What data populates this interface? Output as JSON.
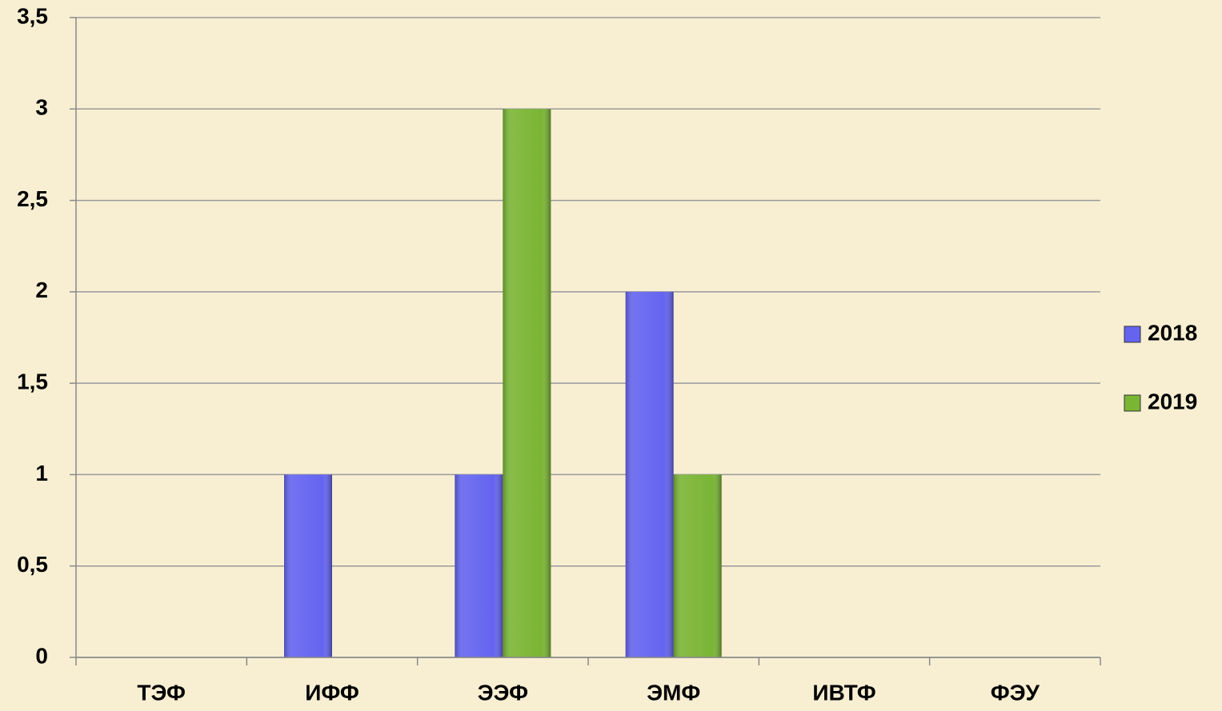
{
  "chart_data": {
    "type": "bar",
    "categories": [
      "ТЭФ",
      "ИФФ",
      "ЭЭФ",
      "ЭМФ",
      "ИВТФ",
      "ФЭУ"
    ],
    "series": [
      {
        "name": "2018",
        "color": "#6464f0",
        "values": [
          0,
          1,
          1,
          2,
          0,
          0
        ]
      },
      {
        "name": "2019",
        "color": "#7ab534",
        "values": [
          0,
          0,
          3,
          1,
          0,
          0
        ]
      }
    ],
    "ylim": [
      0,
      3.5
    ],
    "yticks": [
      0,
      {
        "value": 0.5,
        "label": "0,5"
      },
      1,
      {
        "value": 1.5,
        "label": "1,5"
      },
      2,
      {
        "value": 2.5,
        "label": "2,5"
      },
      3,
      {
        "value": 3.5,
        "label": "3,5"
      }
    ],
    "grid": true,
    "legend": "right"
  }
}
